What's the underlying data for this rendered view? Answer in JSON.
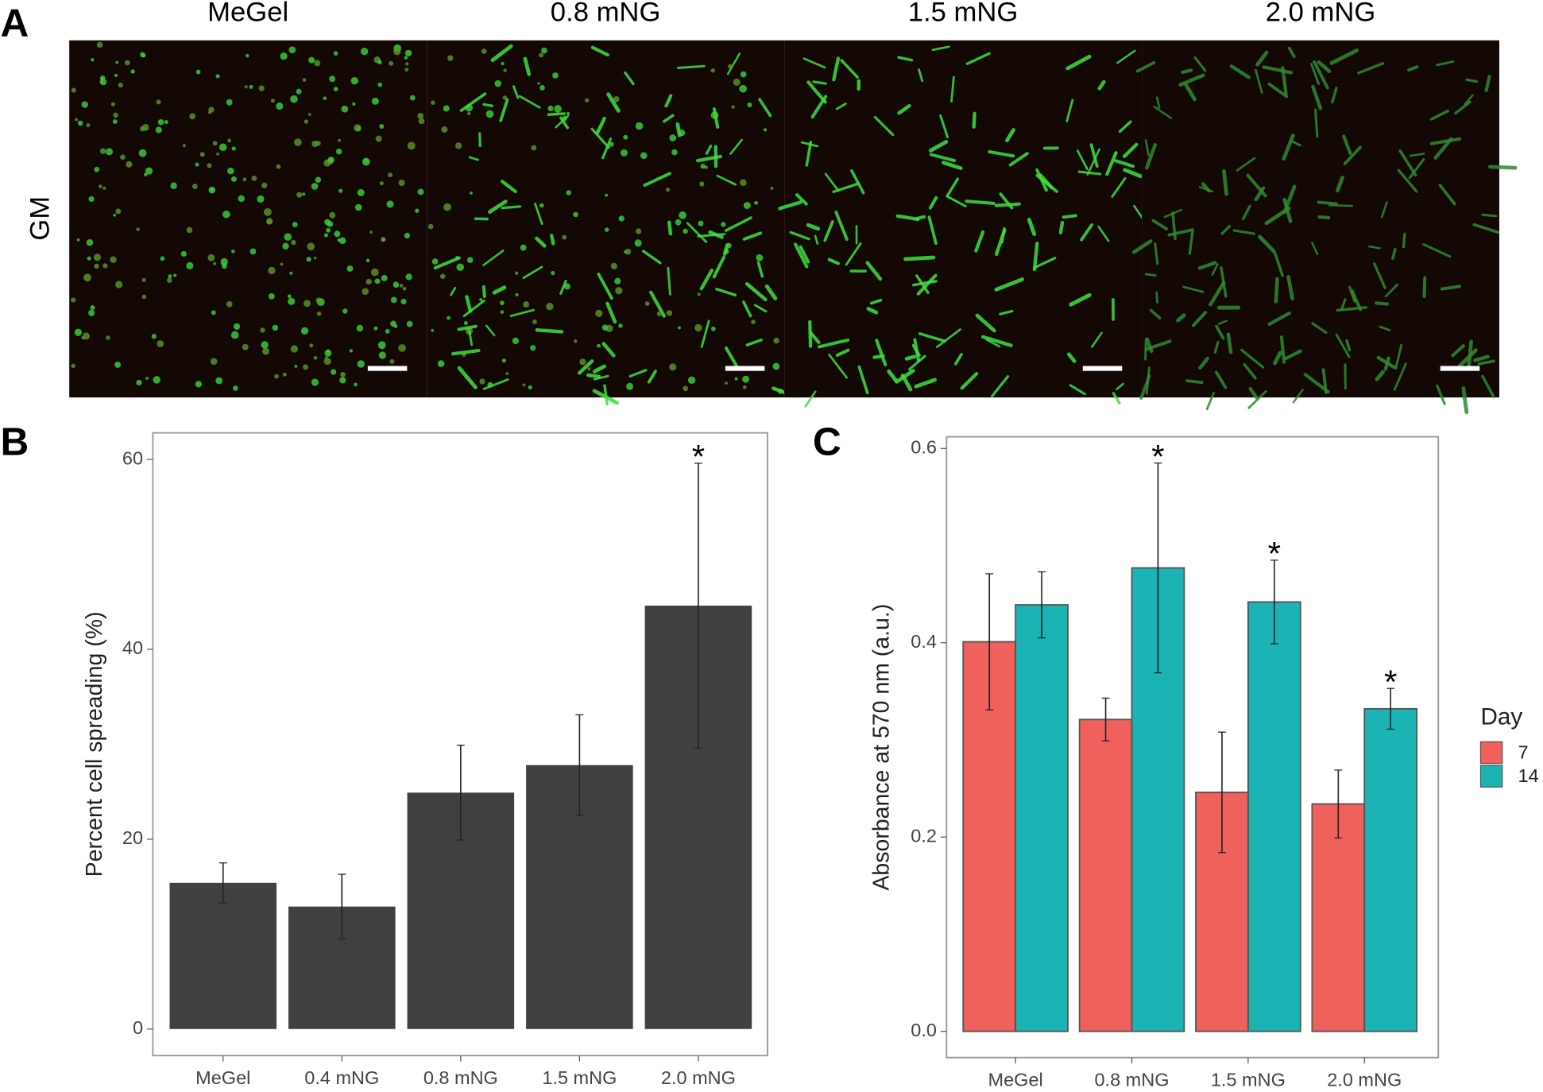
{
  "panel_a": {
    "panel_label": "A",
    "row_label": "GM",
    "columns": [
      "MeGel",
      "0.8 mNG",
      "1.5 mNG",
      "2.0 mNG"
    ]
  },
  "chart_data": [
    {
      "type": "bar",
      "panel_label": "B",
      "ylabel": "Percent cell spreading (%)",
      "categories": [
        "MeGel",
        "0.4 mNG",
        "0.8 mNG",
        "1.5 mNG",
        "2.0 mNG"
      ],
      "series": [
        {
          "color": "#404040",
          "values": [
            15.4,
            12.9,
            24.9,
            27.8,
            44.6
          ],
          "errors": [
            2.1,
            3.4,
            5.0,
            5.3,
            15.0
          ],
          "labels": [
            null,
            null,
            null,
            null,
            "*"
          ]
        }
      ],
      "ylim": [
        -2.8,
        62.8
      ],
      "yticks": [
        0,
        20,
        40,
        60
      ]
    },
    {
      "type": "bar",
      "panel_label": "C",
      "ylabel": "Absorbance at 570 nm (a.u.)",
      "categories": [
        "MeGel",
        "0.8 mNG",
        "1.5 mNG",
        "2.0 mNG"
      ],
      "legend_title": "Day",
      "series": [
        {
          "name": "7",
          "color": "#f0605c",
          "values": [
            0.401,
            0.321,
            0.246,
            0.234
          ],
          "errors": [
            0.07,
            0.022,
            0.062,
            0.035
          ],
          "labels": [
            null,
            null,
            null,
            null
          ]
        },
        {
          "name": "14",
          "color": "#1bb3b3",
          "values": [
            0.439,
            0.477,
            0.442,
            0.332
          ],
          "errors": [
            0.034,
            0.108,
            0.043,
            0.021
          ],
          "labels": [
            null,
            "*",
            "*",
            "*"
          ]
        }
      ],
      "ylim": [
        -0.027,
        0.612
      ],
      "yticks": [
        {
          "value": 0,
          "label": "0.0"
        },
        {
          "value": 0.2,
          "label": "0.2"
        },
        {
          "value": 0.4,
          "label": "0.4"
        },
        {
          "value": 0.6,
          "label": "0.6"
        }
      ]
    }
  ]
}
